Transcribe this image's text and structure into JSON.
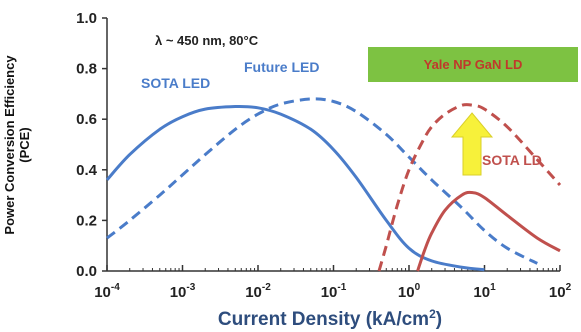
{
  "chart_data": {
    "type": "line",
    "title": "",
    "ylabel_line1": "Power Conversion Efficiency",
    "ylabel_line2": "(PCE)",
    "xlabel": "Current Density (kA/cm²)",
    "xlabel_parts": {
      "main": "Current Density (kA/cm",
      "sup": "2",
      "tail": ")"
    },
    "xscale": "log",
    "xlim": [
      0.0001,
      100
    ],
    "ylim": [
      0,
      1.0
    ],
    "x_ticks": [
      {
        "base": "10",
        "exp": "-4"
      },
      {
        "base": "10",
        "exp": "-3"
      },
      {
        "base": "10",
        "exp": "-2"
      },
      {
        "base": "10",
        "exp": "-1"
      },
      {
        "base": "10",
        "exp": "0"
      },
      {
        "base": "10",
        "exp": "1"
      },
      {
        "base": "10",
        "exp": "2"
      }
    ],
    "y_ticks": [
      "0.0",
      "0.2",
      "0.4",
      "0.6",
      "0.8",
      "1.0"
    ],
    "annotation": "λ ~ 450 nm, 80°C",
    "callout_box": {
      "text": "Yale NP GaN LD",
      "fill": "#7dc242",
      "text_color": "#c0392b"
    },
    "arrow_color": "#f7f13a",
    "series": [
      {
        "name": "SOTA LED",
        "color": "#4a7cc9",
        "dash": "solid",
        "points": [
          [
            0.0001,
            0.36
          ],
          [
            0.0002,
            0.46
          ],
          [
            0.0005,
            0.56
          ],
          [
            0.001,
            0.61
          ],
          [
            0.002,
            0.64
          ],
          [
            0.005,
            0.65
          ],
          [
            0.01,
            0.645
          ],
          [
            0.02,
            0.62
          ],
          [
            0.05,
            0.56
          ],
          [
            0.1,
            0.48
          ],
          [
            0.2,
            0.37
          ],
          [
            0.5,
            0.2
          ],
          [
            1,
            0.09
          ],
          [
            2,
            0.04
          ],
          [
            5,
            0.015
          ],
          [
            10,
            0.005
          ]
        ]
      },
      {
        "name": "Future LED",
        "color": "#4a7cc9",
        "dash": "dashed",
        "points": [
          [
            0.0001,
            0.13
          ],
          [
            0.0002,
            0.2
          ],
          [
            0.0005,
            0.3
          ],
          [
            0.001,
            0.38
          ],
          [
            0.002,
            0.46
          ],
          [
            0.005,
            0.56
          ],
          [
            0.01,
            0.62
          ],
          [
            0.02,
            0.66
          ],
          [
            0.05,
            0.68
          ],
          [
            0.1,
            0.67
          ],
          [
            0.2,
            0.63
          ],
          [
            0.5,
            0.54
          ],
          [
            1,
            0.45
          ],
          [
            2,
            0.36
          ],
          [
            5,
            0.25
          ],
          [
            10,
            0.16
          ],
          [
            20,
            0.09
          ],
          [
            50,
            0.03
          ]
        ]
      },
      {
        "name": "SOTA LD",
        "color": "#c0504d",
        "dash": "solid",
        "points": [
          [
            1.3,
            0
          ],
          [
            1.6,
            0.08
          ],
          [
            2,
            0.15
          ],
          [
            3,
            0.24
          ],
          [
            5,
            0.3
          ],
          [
            7,
            0.31
          ],
          [
            10,
            0.29
          ],
          [
            20,
            0.22
          ],
          [
            50,
            0.13
          ],
          [
            100,
            0.08
          ]
        ]
      },
      {
        "name": "",
        "color": "#c0504d",
        "dash": "dashed",
        "points": [
          [
            0.4,
            0
          ],
          [
            0.5,
            0.1
          ],
          [
            0.7,
            0.26
          ],
          [
            1,
            0.4
          ],
          [
            1.5,
            0.51
          ],
          [
            2,
            0.57
          ],
          [
            3,
            0.62
          ],
          [
            5,
            0.655
          ],
          [
            7,
            0.655
          ],
          [
            10,
            0.64
          ],
          [
            20,
            0.57
          ],
          [
            50,
            0.44
          ],
          [
            100,
            0.34
          ]
        ]
      }
    ]
  }
}
